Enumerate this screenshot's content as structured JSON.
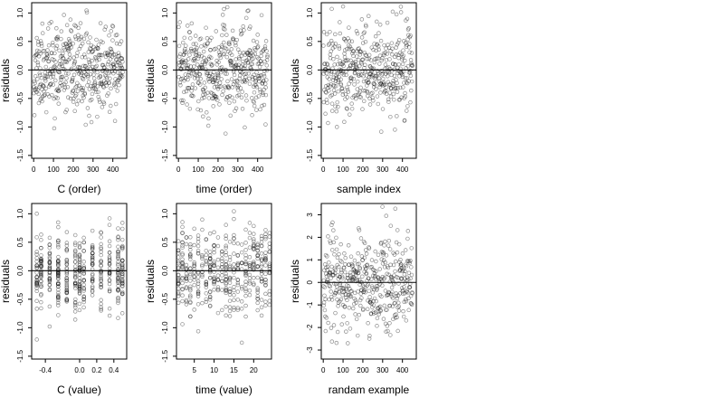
{
  "chart_data": [
    {
      "type": "scatter",
      "xlabel": "C (order)",
      "ylabel": "residuals",
      "xticks": [
        0,
        100,
        200,
        300,
        400
      ],
      "yticks": [
        -1.5,
        -1.0,
        -0.5,
        0.0,
        0.5,
        1.0
      ],
      "ytick_labels": [
        "-1.5",
        "-1.0",
        "-0.5",
        "0.0",
        "0.5",
        "1.0"
      ],
      "xlim": [
        -10,
        470
      ],
      "ylim": [
        -1.55,
        1.18
      ],
      "hline": 0,
      "gen": {
        "kind": "order",
        "n": 450,
        "sd": 0.36,
        "seed": 11
      }
    },
    {
      "type": "scatter",
      "xlabel": "time (order)",
      "ylabel": "residuals",
      "xticks": [
        0,
        100,
        200,
        300,
        400
      ],
      "yticks": [
        -1.5,
        -1.0,
        -0.5,
        0.0,
        0.5,
        1.0
      ],
      "ytick_labels": [
        "-1.5",
        "-1.0",
        "-0.5",
        "0.0",
        "0.5",
        "1.0"
      ],
      "xlim": [
        -10,
        470
      ],
      "ylim": [
        -1.55,
        1.18
      ],
      "hline": 0,
      "gen": {
        "kind": "order",
        "n": 450,
        "sd": 0.38,
        "seed": 23
      }
    },
    {
      "type": "scatter",
      "xlabel": "sample index",
      "ylabel": "residuals",
      "xticks": [
        0,
        100,
        200,
        300,
        400
      ],
      "yticks": [
        -1.5,
        -1.0,
        -0.5,
        0.0,
        0.5,
        1.0
      ],
      "ytick_labels": [
        "-1.5",
        "-1.0",
        "-0.5",
        "0.0",
        "0.5",
        "1.0"
      ],
      "xlim": [
        -10,
        470
      ],
      "ylim": [
        -1.55,
        1.18
      ],
      "hline": 0,
      "gen": {
        "kind": "order",
        "n": 450,
        "sd": 0.37,
        "seed": 37
      }
    },
    {
      "type": "scatter",
      "xlabel": "C (value)",
      "ylabel": "residuals",
      "xticks": [
        -0.4,
        0.0,
        0.2,
        0.4
      ],
      "xtick_labels": [
        "-0.4",
        "0.0",
        "0.2",
        "0.4"
      ],
      "yticks": [
        -1.5,
        -1.0,
        -0.5,
        0.0,
        0.5,
        1.0
      ],
      "ytick_labels": [
        "-1.5",
        "-1.0",
        "-0.5",
        "0.0",
        "0.5",
        "1.0"
      ],
      "xlim": [
        -0.56,
        0.55
      ],
      "ylim": [
        -1.55,
        1.18
      ],
      "hline": 0,
      "gen": {
        "kind": "levels",
        "levels": [
          -0.5,
          -0.45,
          -0.35,
          -0.25,
          -0.15,
          -0.05,
          0.0,
          0.05,
          0.15,
          0.25,
          0.35,
          0.45,
          0.5
        ],
        "n": 450,
        "sd": 0.36,
        "seed": 41
      }
    },
    {
      "type": "scatter",
      "xlabel": "time (value)",
      "ylabel": "residuals",
      "xticks": [
        5,
        10,
        15,
        20
      ],
      "yticks": [
        -1.5,
        -1.0,
        -0.5,
        0.0,
        0.5,
        1.0
      ],
      "ytick_labels": [
        "-1.5",
        "-1.0",
        "-0.5",
        "0.0",
        "0.5",
        "1.0"
      ],
      "xlim": [
        0.5,
        24.5
      ],
      "ylim": [
        -1.55,
        1.18
      ],
      "hline": 0,
      "gen": {
        "kind": "levels",
        "levels": [
          1,
          2,
          3,
          4,
          5,
          6,
          7,
          8,
          9,
          10,
          11,
          12,
          13,
          14,
          15,
          16,
          17,
          18,
          19,
          20,
          21,
          22,
          23,
          24
        ],
        "n": 450,
        "sd": 0.37,
        "seed": 53
      }
    },
    {
      "type": "scatter",
      "xlabel": "randam example",
      "ylabel": "residuals",
      "xticks": [
        0,
        100,
        200,
        300,
        400
      ],
      "yticks": [
        -3,
        -2,
        -1,
        0,
        1,
        2,
        3
      ],
      "xlim": [
        -10,
        470
      ],
      "ylim": [
        -3.4,
        3.5
      ],
      "hline": 0,
      "gen": {
        "kind": "order",
        "n": 450,
        "sd": 1.0,
        "seed": 67
      }
    }
  ]
}
